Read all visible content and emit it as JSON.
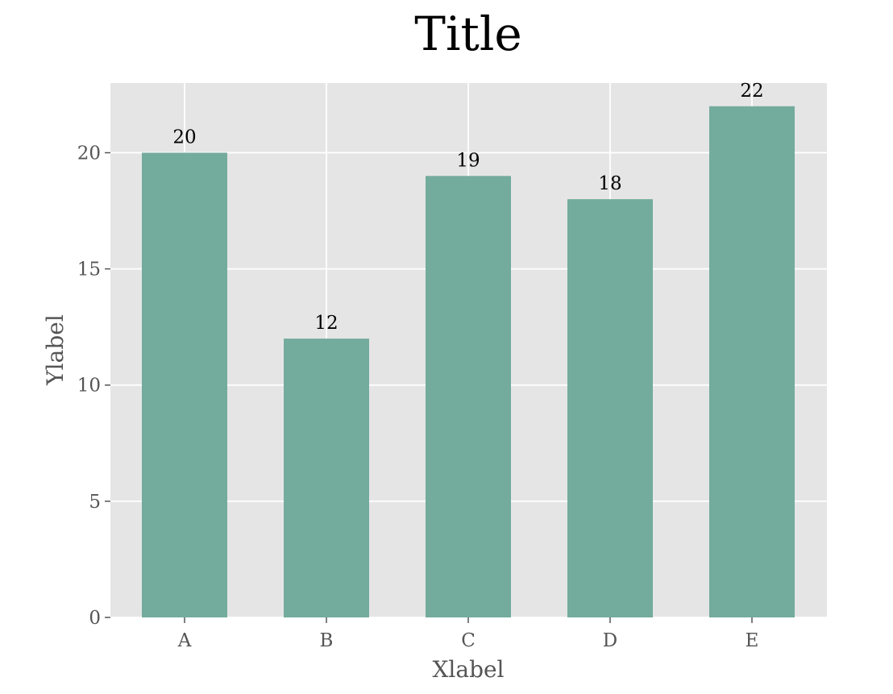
{
  "chart_data": {
    "type": "bar",
    "title": "Title",
    "xlabel": "Xlabel",
    "ylabel": "Ylabel",
    "categories": [
      "A",
      "B",
      "C",
      "D",
      "E"
    ],
    "values": [
      20,
      12,
      19,
      18,
      22
    ],
    "data_labels": [
      "20",
      "12",
      "19",
      "18",
      "22"
    ],
    "ylim": [
      0,
      23
    ],
    "yticks": [
      0,
      5,
      10,
      15,
      20
    ],
    "ytick_labels": [
      "0",
      "5",
      "10",
      "15",
      "20"
    ],
    "grid": true,
    "legend": "none",
    "colors": {
      "bar": "#73ab9d",
      "plot_background": "#e5e5e5",
      "grid": "#ffffff",
      "tick_text": "#555555",
      "title_text": "#000000"
    }
  }
}
